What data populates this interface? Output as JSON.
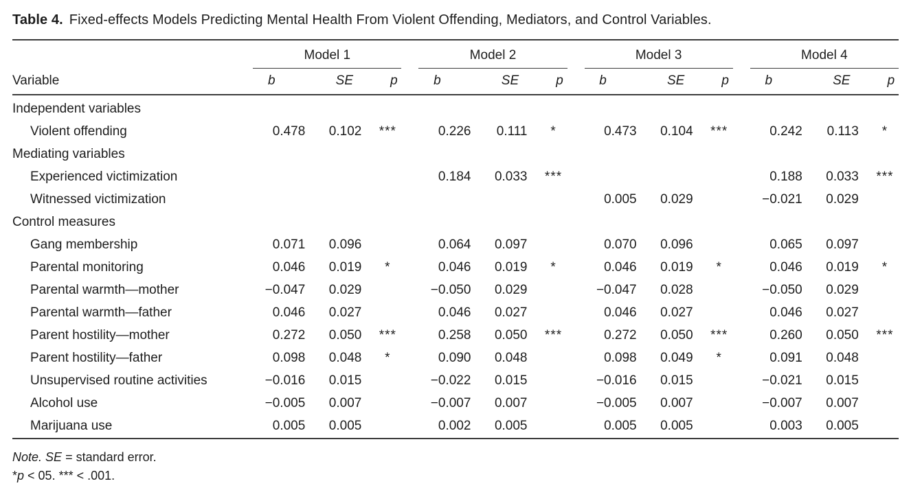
{
  "title": {
    "label": "Table 4.",
    "text": "Fixed-effects Models Predicting Mental Health From Violent Offending, Mediators, and Control Variables."
  },
  "header": {
    "variable": "Variable",
    "models": [
      "Model 1",
      "Model 2",
      "Model 3",
      "Model 4"
    ],
    "stats": [
      "b",
      "SE",
      "p"
    ]
  },
  "rows": [
    {
      "type": "section",
      "label": "Independent variables"
    },
    {
      "type": "item",
      "label": "Violent offending",
      "models": [
        [
          "0.478",
          "0.102",
          "***"
        ],
        [
          "0.226",
          "0.111",
          "*"
        ],
        [
          "0.473",
          "0.104",
          "***"
        ],
        [
          "0.242",
          "0.113",
          "*"
        ]
      ]
    },
    {
      "type": "section",
      "label": "Mediating variables"
    },
    {
      "type": "item",
      "label": "Experienced victimization",
      "models": [
        [
          "",
          "",
          ""
        ],
        [
          "0.184",
          "0.033",
          "***"
        ],
        [
          "",
          "",
          ""
        ],
        [
          "0.188",
          "0.033",
          "***"
        ]
      ]
    },
    {
      "type": "item",
      "label": "Witnessed victimization",
      "models": [
        [
          "",
          "",
          ""
        ],
        [
          "",
          "",
          ""
        ],
        [
          "0.005",
          "0.029",
          ""
        ],
        [
          "−0.021",
          "0.029",
          ""
        ]
      ]
    },
    {
      "type": "section",
      "label": "Control measures"
    },
    {
      "type": "item",
      "label": "Gang membership",
      "models": [
        [
          "0.071",
          "0.096",
          ""
        ],
        [
          "0.064",
          "0.097",
          ""
        ],
        [
          "0.070",
          "0.096",
          ""
        ],
        [
          "0.065",
          "0.097",
          ""
        ]
      ]
    },
    {
      "type": "item",
      "label": "Parental monitoring",
      "models": [
        [
          "0.046",
          "0.019",
          "*"
        ],
        [
          "0.046",
          "0.019",
          "*"
        ],
        [
          "0.046",
          "0.019",
          "*"
        ],
        [
          "0.046",
          "0.019",
          "*"
        ]
      ]
    },
    {
      "type": "item",
      "label": "Parental warmth—mother",
      "models": [
        [
          "−0.047",
          "0.029",
          ""
        ],
        [
          "−0.050",
          "0.029",
          ""
        ],
        [
          "−0.047",
          "0.028",
          ""
        ],
        [
          "−0.050",
          "0.029",
          ""
        ]
      ]
    },
    {
      "type": "item",
      "label": "Parental warmth—father",
      "models": [
        [
          "0.046",
          "0.027",
          ""
        ],
        [
          "0.046",
          "0.027",
          ""
        ],
        [
          "0.046",
          "0.027",
          ""
        ],
        [
          "0.046",
          "0.027",
          ""
        ]
      ]
    },
    {
      "type": "item",
      "label": "Parent hostility—mother",
      "models": [
        [
          "0.272",
          "0.050",
          "***"
        ],
        [
          "0.258",
          "0.050",
          "***"
        ],
        [
          "0.272",
          "0.050",
          "***"
        ],
        [
          "0.260",
          "0.050",
          "***"
        ]
      ]
    },
    {
      "type": "item",
      "label": "Parent hostility—father",
      "models": [
        [
          "0.098",
          "0.048",
          "*"
        ],
        [
          "0.090",
          "0.048",
          ""
        ],
        [
          "0.098",
          "0.049",
          "*"
        ],
        [
          "0.091",
          "0.048",
          ""
        ]
      ]
    },
    {
      "type": "item",
      "label": "Unsupervised routine activities",
      "models": [
        [
          "−0.016",
          "0.015",
          ""
        ],
        [
          "−0.022",
          "0.015",
          ""
        ],
        [
          "−0.016",
          "0.015",
          ""
        ],
        [
          "−0.021",
          "0.015",
          ""
        ]
      ]
    },
    {
      "type": "item",
      "label": "Alcohol use",
      "models": [
        [
          "−0.005",
          "0.007",
          ""
        ],
        [
          "−0.007",
          "0.007",
          ""
        ],
        [
          "−0.005",
          "0.007",
          ""
        ],
        [
          "−0.007",
          "0.007",
          ""
        ]
      ]
    },
    {
      "type": "item",
      "label": "Marijuana use",
      "models": [
        [
          "0.005",
          "0.005",
          ""
        ],
        [
          "0.002",
          "0.005",
          ""
        ],
        [
          "0.005",
          "0.005",
          ""
        ],
        [
          "0.003",
          "0.005",
          ""
        ]
      ]
    }
  ],
  "notes": {
    "line1": [
      {
        "text": "Note.",
        "italic": true
      },
      {
        "text": " ",
        "italic": false
      },
      {
        "text": "SE",
        "italic": true
      },
      {
        "text": " = standard error.",
        "italic": false
      }
    ],
    "line2": [
      {
        "text": "*",
        "italic": false
      },
      {
        "text": "p",
        "italic": true
      },
      {
        "text": " < 05. *** < .001.",
        "italic": false
      }
    ]
  }
}
